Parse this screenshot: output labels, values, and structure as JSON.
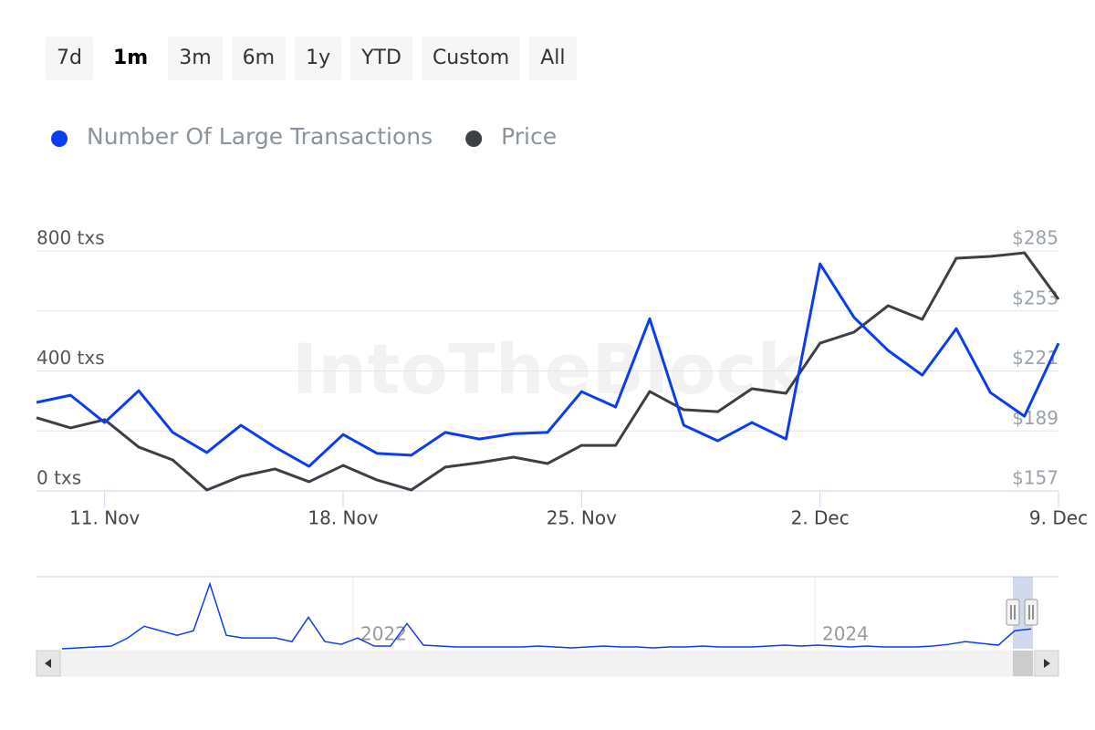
{
  "ranges": [
    "7d",
    "1m",
    "3m",
    "6m",
    "1y",
    "YTD",
    "Custom",
    "All"
  ],
  "selected_range": "1m",
  "watermark": "IntoTheBlock",
  "chart_data": {
    "type": "line",
    "x": [
      null,
      null,
      "11. Nov",
      null,
      null,
      null,
      null,
      null,
      null,
      "18. Nov",
      null,
      null,
      null,
      null,
      null,
      null,
      "25. Nov",
      null,
      null,
      null,
      null,
      null,
      null,
      "2. Dec",
      null,
      null,
      null,
      null,
      null,
      null,
      "9. Dec"
    ],
    "series": [
      {
        "name": "Number Of Large Transactions",
        "color": "#0b3df0",
        "values": [
          295,
          319,
          228,
          334,
          195,
          128,
          219,
          146,
          82,
          188,
          125,
          119,
          195,
          173,
          191,
          195,
          331,
          280,
          574,
          219,
          167,
          228,
          173,
          757,
          578,
          468,
          386,
          541,
          328,
          249,
          492
        ]
      },
      {
        "name": "Price",
        "color": "#3c3f44",
        "axis": "y2",
        "values": [
          196,
          190.6,
          195,
          180.4,
          173.5,
          157.5,
          164.8,
          168.7,
          161.9,
          170.6,
          162.8,
          157.5,
          169.7,
          172.1,
          175,
          171.6,
          181.3,
          181.3,
          210,
          200.3,
          199.3,
          211.5,
          209.1,
          235.8,
          241.7,
          255.8,
          248.5,
          281.1,
          282.1,
          284,
          259.2
        ]
      }
    ],
    "ylim": [
      0,
      800
    ],
    "yticks": [
      {
        "value": 0,
        "label": "0 txs"
      },
      {
        "value": 400,
        "label": "400 txs"
      },
      {
        "value": 800,
        "label": "800 txs"
      }
    ],
    "y2lim": [
      157,
      285
    ],
    "y2ticks": [
      {
        "value": 157,
        "label": "$157"
      },
      {
        "value": 189,
        "label": "$189"
      },
      {
        "value": 221,
        "label": "$221"
      },
      {
        "value": 253,
        "label": "$253"
      },
      {
        "value": 285,
        "label": "$285"
      }
    ],
    "grid": true
  },
  "navigator": {
    "labels": [
      "2022",
      "2024"
    ],
    "color": "#0b3df0",
    "ylim": [
      0,
      80
    ],
    "values": [
      0,
      1,
      2,
      3,
      12,
      25,
      20,
      15,
      20,
      72,
      15,
      12,
      12,
      12,
      8,
      35,
      8,
      5,
      12,
      3,
      3,
      28,
      4,
      3,
      2,
      2,
      2,
      2,
      2,
      3,
      2,
      1,
      2,
      3,
      2,
      2,
      1,
      2,
      2,
      3,
      2,
      2,
      2,
      3,
      4,
      3,
      4,
      3,
      2,
      3,
      2,
      2,
      2,
      3,
      5,
      8,
      6,
      4,
      20,
      22
    ]
  }
}
